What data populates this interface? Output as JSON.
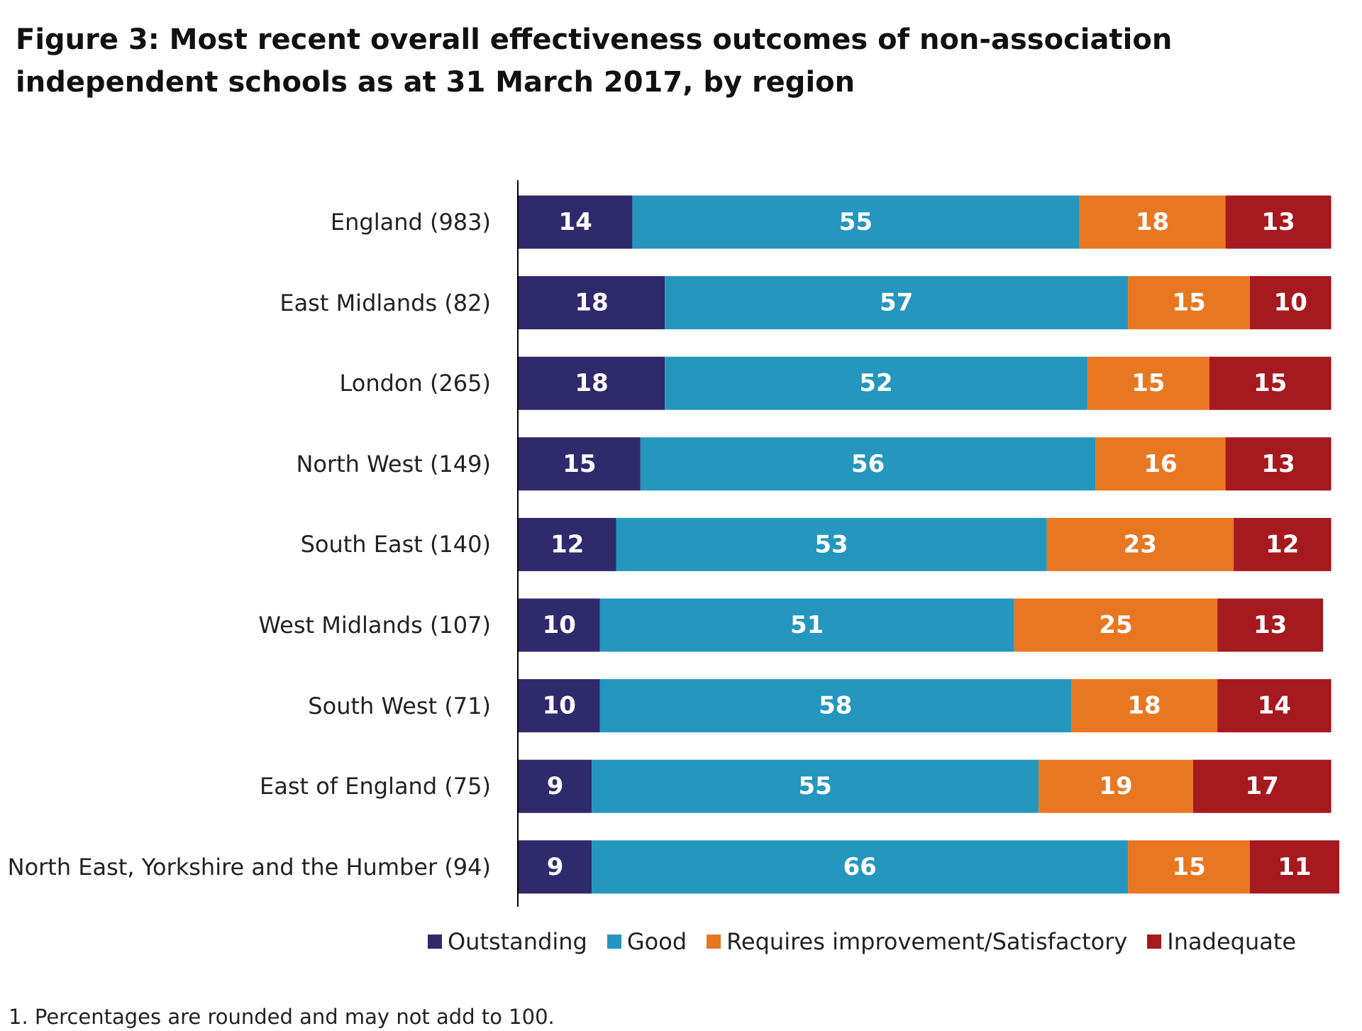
{
  "chart_data": {
    "type": "stacked_bar_horizontal",
    "title": [
      "Figure 3: Most recent overall effectiveness outcomes of non-association",
      "independent schools as at 31 March 2017, by region"
    ],
    "categories": [
      "England (983)",
      "East Midlands (82)",
      "London (265)",
      "North West (149)",
      "South East (140)",
      "West Midlands (107)",
      "South West (71)",
      "East of England (75)",
      "North East, Yorkshire and the Humber (94)"
    ],
    "series": [
      {
        "name": "Outstanding",
        "color": "#2e2a6b",
        "values": [
          14,
          18,
          18,
          15,
          12,
          10,
          10,
          9,
          9
        ]
      },
      {
        "name": "Good",
        "color": "#2596be",
        "values": [
          55,
          57,
          52,
          56,
          53,
          51,
          58,
          55,
          66
        ]
      },
      {
        "name": "Requires improvement/Satisfactory",
        "color": "#e87722",
        "values": [
          18,
          15,
          15,
          16,
          23,
          25,
          18,
          19,
          15
        ]
      },
      {
        "name": "Inadequate",
        "color": "#a6191e",
        "values": [
          13,
          10,
          15,
          13,
          12,
          13,
          14,
          17,
          11
        ]
      }
    ],
    "note": "1. Percentages are rounded and may not add to 100."
  }
}
